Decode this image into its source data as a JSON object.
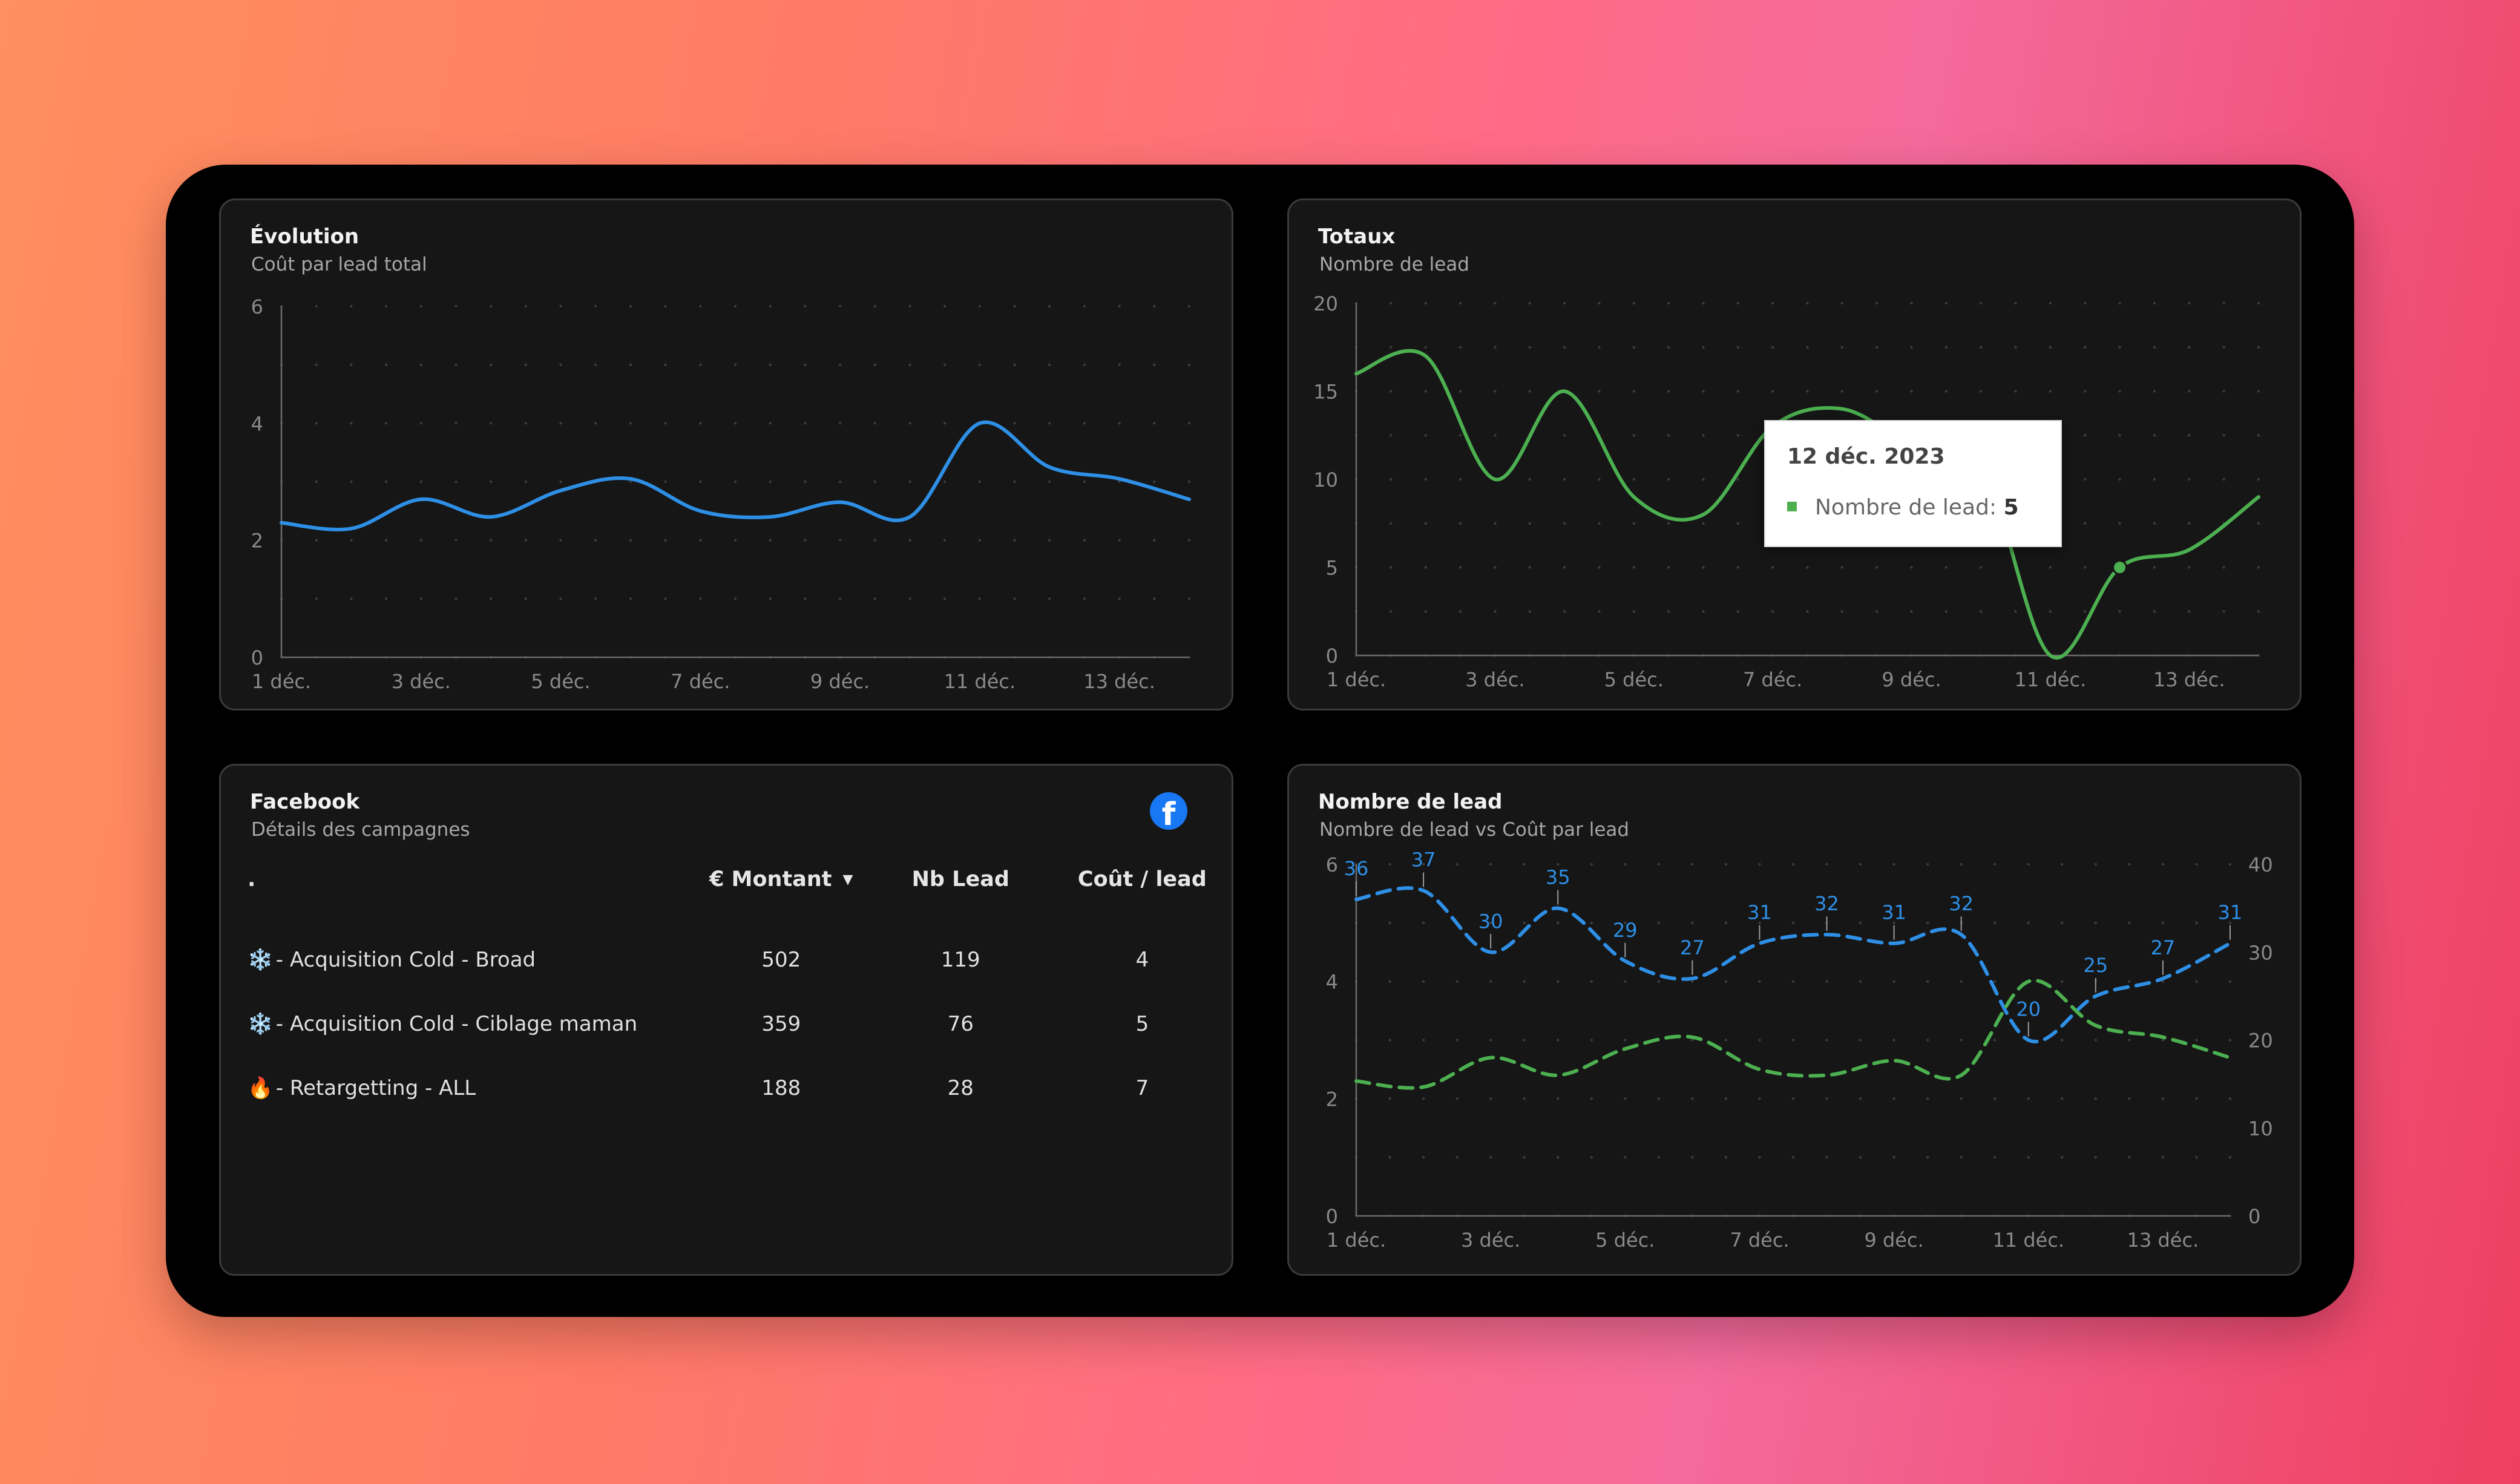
{
  "colors": {
    "blue": "#2e8fe6",
    "green": "#4caf50",
    "facebook": "#1877f2"
  },
  "evolution": {
    "title": "Évolution",
    "subtitle": "Coût par lead total",
    "chart_data": {
      "type": "line",
      "x": [
        "1 déc.",
        "2 déc.",
        "3 déc.",
        "4 déc.",
        "5 déc.",
        "6 déc.",
        "7 déc.",
        "8 déc.",
        "9 déc.",
        "10 déc.",
        "11 déc.",
        "12 déc.",
        "13 déc.",
        "14 déc."
      ],
      "x_tick_labels": [
        "1 déc.",
        "3 déc.",
        "5 déc.",
        "7 déc.",
        "9 déc.",
        "11 déc.",
        "13 déc."
      ],
      "series": [
        {
          "values": [
            2.3,
            2.2,
            2.7,
            2.4,
            2.85,
            3.05,
            2.5,
            2.4,
            2.65,
            2.4,
            4.0,
            3.25,
            3.05,
            2.7
          ]
        }
      ],
      "ylim": [
        0,
        6
      ],
      "y_ticks": [
        0,
        2,
        4,
        6
      ],
      "grid": "dots"
    }
  },
  "totaux": {
    "title": "Totaux",
    "subtitle": "Nombre de lead",
    "chart_data": {
      "type": "line",
      "x": [
        "1 déc.",
        "2 déc.",
        "3 déc.",
        "4 déc.",
        "5 déc.",
        "6 déc.",
        "7 déc.",
        "8 déc.",
        "9 déc.",
        "10 déc.",
        "11 déc.",
        "12 déc.",
        "13 déc.",
        "14 déc."
      ],
      "x_tick_labels": [
        "1 déc.",
        "3 déc.",
        "5 déc.",
        "7 déc.",
        "9 déc.",
        "11 déc.",
        "13 déc."
      ],
      "series": [
        {
          "name": "Nombre de lead",
          "values": [
            16,
            17,
            10,
            15,
            9,
            8,
            13,
            14,
            12,
            11,
            0,
            5,
            6,
            9
          ]
        }
      ],
      "ylim": [
        0,
        20
      ],
      "y_ticks": [
        0,
        5,
        10,
        15,
        20
      ],
      "grid": "dots"
    },
    "tooltip": {
      "date": "12 déc. 2023",
      "label": "Nombre de lead:",
      "value": "5"
    }
  },
  "facebook": {
    "title": "Facebook",
    "subtitle": "Détails des campagnes",
    "logo_letter": "f",
    "columns": [
      ".",
      "€ Montant",
      "Nb Lead",
      "Coût / lead"
    ],
    "sort_arrow": "▼",
    "rows": [
      {
        "emoji": "❄️",
        "name": " - Acquisition Cold - Broad",
        "montant": "502",
        "leads": "119",
        "cout": "4"
      },
      {
        "emoji": "❄️",
        "name": " - Acquisition Cold - Ciblage maman",
        "montant": "359",
        "leads": "76",
        "cout": "5"
      },
      {
        "emoji": "🔥",
        "name": " - Retargetting - ALL",
        "montant": "188",
        "leads": "28",
        "cout": "7"
      }
    ]
  },
  "nombre_de_lead": {
    "title": "Nombre de lead",
    "subtitle": "Nombre de lead vs Coût par lead",
    "chart_data": {
      "type": "line",
      "x": [
        "1 déc.",
        "2 déc.",
        "3 déc.",
        "4 déc.",
        "5 déc.",
        "6 déc.",
        "7 déc.",
        "8 déc.",
        "9 déc.",
        "10 déc.",
        "11 déc.",
        "12 déc.",
        "13 déc.",
        "14 déc."
      ],
      "x_tick_labels": [
        "1 déc.",
        "3 déc.",
        "5 déc.",
        "7 déc.",
        "9 déc.",
        "11 déc.",
        "13 déc."
      ],
      "series": [
        {
          "axis": "right",
          "style": "dashed",
          "values": [
            36,
            37,
            30,
            35,
            29,
            27,
            31,
            32,
            31,
            32,
            20,
            25,
            27,
            31
          ],
          "data_labels": [
            "36",
            "37",
            "30",
            "35",
            "29",
            "27",
            "31",
            "32",
            "31",
            "32",
            "20",
            "25",
            "27",
            "31"
          ]
        },
        {
          "axis": "left",
          "style": "dashed",
          "values": [
            2.3,
            2.2,
            2.7,
            2.4,
            2.85,
            3.05,
            2.5,
            2.4,
            2.65,
            2.4,
            4.0,
            3.25,
            3.05,
            2.7
          ]
        }
      ],
      "ylim_left": [
        0,
        6
      ],
      "y_ticks_left": [
        0,
        2,
        4,
        6
      ],
      "ylim_right": [
        0,
        40
      ],
      "y_ticks_right": [
        0,
        10,
        20,
        30,
        40
      ],
      "grid": "dots"
    }
  }
}
